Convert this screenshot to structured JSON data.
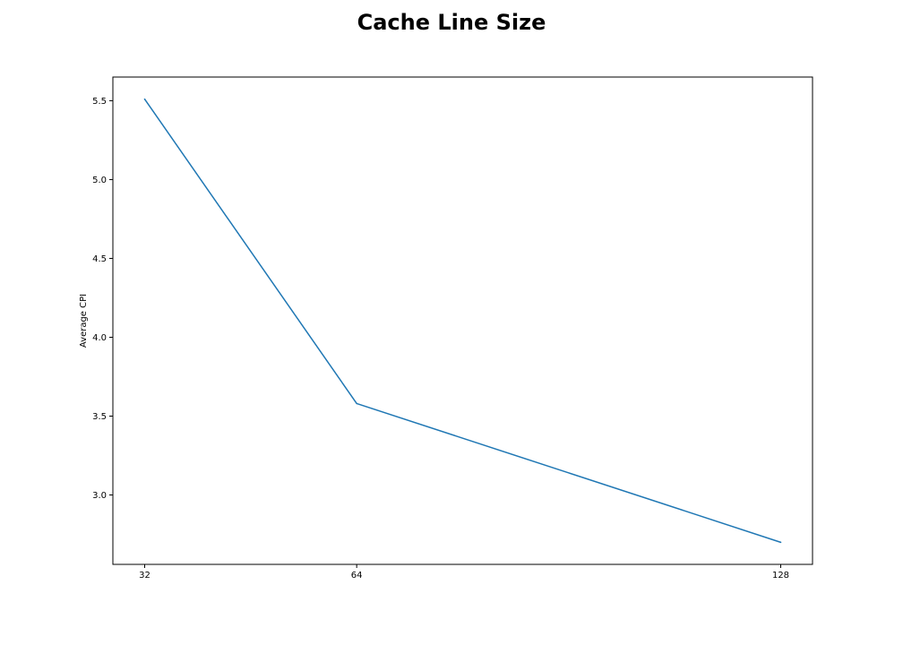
{
  "chart_data": {
    "type": "line",
    "title": "Cache Line Size",
    "xlabel": "",
    "ylabel": "Average CPI",
    "x": [
      32,
      64,
      128
    ],
    "x_tick_labels": [
      "32",
      "64",
      "128"
    ],
    "series": [
      {
        "values": [
          5.51,
          3.58,
          2.7
        ],
        "color": "#1f77b4"
      }
    ],
    "xlim": [
      27.2,
      132.8
    ],
    "ylim": [
      2.56,
      5.65
    ],
    "y_ticks": [
      3.0,
      3.5,
      4.0,
      4.5,
      5.0,
      5.5
    ],
    "y_tick_labels": [
      "3.0",
      "3.5",
      "4.0",
      "4.5",
      "5.0",
      "5.5"
    ],
    "grid": false,
    "legend": "none"
  }
}
